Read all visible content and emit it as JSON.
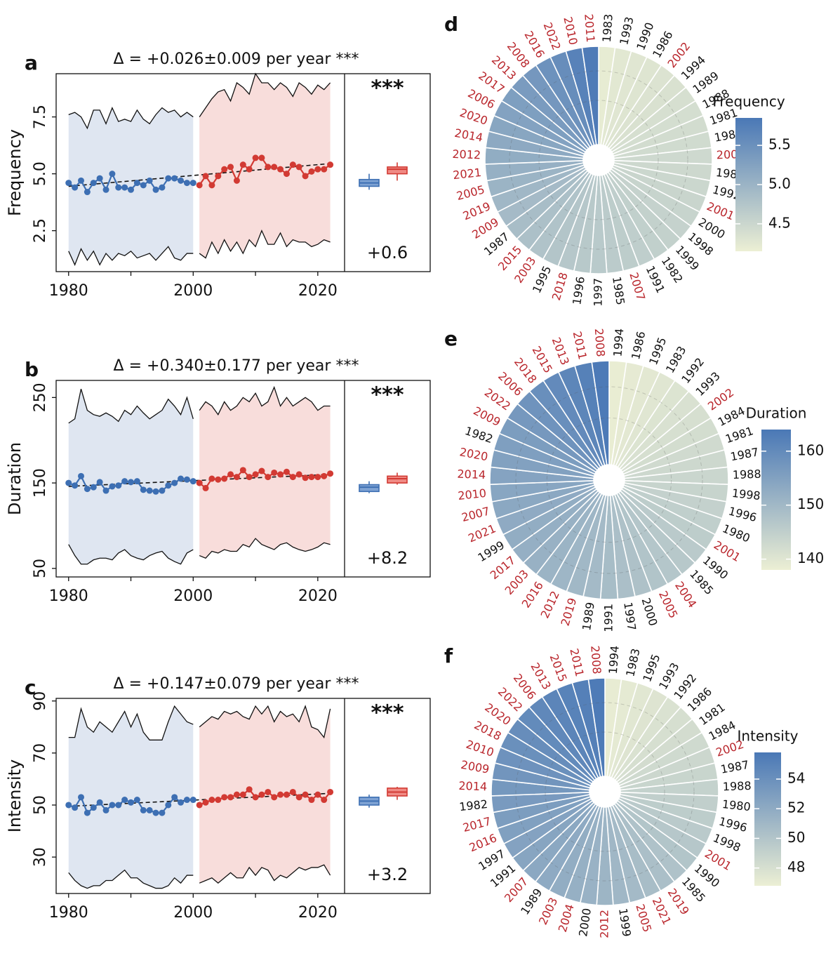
{
  "chart_data": [
    {
      "type": "line",
      "panel": "a",
      "title": "Δ = +0.026±0.009 per year ***",
      "ylabel": "Frequency",
      "xlim": [
        1978,
        2024.3
      ],
      "xticks": [
        1980,
        2000,
        2020
      ],
      "xminorticks": [
        1990,
        2010
      ],
      "ylim": [
        0.7,
        9.4
      ],
      "yticks": [
        2.5,
        {
          "value": 5,
          "label": "5.0"
        },
        7.5
      ],
      "series": [
        {
          "color": "#3d6fb3",
          "fill": "#dfe6f1",
          "x": [
            1980,
            1981,
            1982,
            1983,
            1984,
            1985,
            1986,
            1987,
            1988,
            1989,
            1990,
            1991,
            1992,
            1993,
            1994,
            1995,
            1996,
            1997,
            1998,
            1999,
            2000
          ],
          "values": [
            4.6,
            4.4,
            4.7,
            4.2,
            4.6,
            4.8,
            4.3,
            5.0,
            4.4,
            4.4,
            4.3,
            4.6,
            4.5,
            4.7,
            4.3,
            4.4,
            4.8,
            4.8,
            4.7,
            4.6,
            4.6
          ],
          "upper": [
            7.6,
            7.7,
            7.5,
            7.0,
            7.8,
            7.8,
            7.2,
            7.9,
            7.3,
            7.4,
            7.3,
            7.8,
            7.4,
            7.2,
            7.6,
            7.9,
            7.7,
            7.8,
            7.5,
            7.7,
            7.5
          ],
          "lower": [
            1.6,
            1.0,
            1.7,
            1.2,
            1.6,
            1.0,
            1.5,
            1.2,
            1.5,
            1.4,
            1.6,
            1.3,
            1.4,
            1.5,
            1.2,
            1.5,
            1.8,
            1.3,
            1.2,
            1.5,
            1.5
          ]
        },
        {
          "color": "#d23a33",
          "fill": "#f8dddb",
          "x": [
            2001,
            2002,
            2003,
            2004,
            2005,
            2006,
            2007,
            2008,
            2009,
            2010,
            2011,
            2012,
            2013,
            2014,
            2015,
            2016,
            2017,
            2018,
            2019,
            2020,
            2021,
            2022
          ],
          "values": [
            4.5,
            4.9,
            4.5,
            4.9,
            5.2,
            5.3,
            4.7,
            5.4,
            5.2,
            5.7,
            5.7,
            5.3,
            5.3,
            5.2,
            5.0,
            5.4,
            5.3,
            4.9,
            5.1,
            5.2,
            5.2,
            5.4
          ],
          "upper": [
            7.5,
            7.9,
            8.3,
            8.6,
            8.7,
            8.2,
            9.0,
            8.8,
            8.5,
            9.4,
            9.0,
            9.0,
            8.7,
            9.0,
            8.8,
            8.4,
            9.0,
            8.8,
            8.5,
            8.9,
            8.7,
            9.0
          ],
          "lower": [
            1.5,
            1.3,
            2.0,
            1.5,
            2.1,
            1.6,
            2.0,
            1.5,
            2.1,
            1.8,
            2.5,
            1.9,
            1.9,
            2.4,
            1.8,
            2.1,
            2.0,
            2.0,
            1.8,
            1.9,
            2.1,
            2.0
          ]
        }
      ],
      "trend": {
        "x": [
          1980,
          2022
        ],
        "values": [
          4.45,
          5.45
        ]
      },
      "boxes": [
        {
          "color": "#3d6fb3",
          "fill": "#7ea2d3",
          "low": 4.3,
          "q1": 4.45,
          "median": 4.6,
          "q3": 4.75,
          "high": 5.0
        },
        {
          "color": "#d23a33",
          "fill": "#f08a84",
          "low": 4.7,
          "q1": 5.0,
          "median": 5.2,
          "q3": 5.3,
          "high": 5.5
        }
      ],
      "significance": "***",
      "difference": "+0.6"
    },
    {
      "type": "line",
      "panel": "b",
      "title": "Δ = +0.340±0.177 per year ***",
      "ylabel": "Duration",
      "xlim": [
        1978,
        2024.3
      ],
      "xticks": [
        1980,
        2000,
        2020
      ],
      "xminorticks": [
        1990,
        2010
      ],
      "ylim": [
        40,
        270
      ],
      "yticks": [
        50,
        150,
        250
      ],
      "series": [
        {
          "color": "#3d6fb3",
          "fill": "#dfe6f1",
          "x": [
            1980,
            1981,
            1982,
            1983,
            1984,
            1985,
            1986,
            1987,
            1988,
            1989,
            1990,
            1991,
            1992,
            1993,
            1994,
            1995,
            1996,
            1997,
            1998,
            1999,
            2000
          ],
          "values": [
            150,
            147,
            158,
            143,
            145,
            151,
            141,
            146,
            147,
            152,
            151,
            152,
            142,
            141,
            140,
            141,
            147,
            150,
            155,
            154,
            152
          ],
          "upper": [
            220,
            225,
            260,
            235,
            230,
            228,
            232,
            228,
            222,
            235,
            230,
            240,
            232,
            225,
            230,
            235,
            248,
            240,
            230,
            250,
            225
          ],
          "lower": [
            78,
            65,
            55,
            55,
            60,
            62,
            62,
            60,
            68,
            72,
            65,
            62,
            60,
            65,
            68,
            70,
            62,
            58,
            55,
            68,
            72
          ]
        },
        {
          "color": "#d23a33",
          "fill": "#f8dddb",
          "x": [
            2001,
            2002,
            2003,
            2004,
            2005,
            2006,
            2007,
            2008,
            2009,
            2010,
            2011,
            2012,
            2013,
            2014,
            2015,
            2016,
            2017,
            2018,
            2019,
            2020,
            2021,
            2022
          ],
          "values": [
            150,
            144,
            155,
            154,
            155,
            160,
            157,
            165,
            157,
            160,
            164,
            157,
            162,
            160,
            163,
            157,
            160,
            156,
            157,
            157,
            158,
            161
          ],
          "upper": [
            235,
            245,
            240,
            230,
            245,
            235,
            240,
            250,
            245,
            255,
            240,
            245,
            262,
            240,
            250,
            240,
            245,
            250,
            245,
            235,
            240,
            240
          ],
          "lower": [
            65,
            62,
            70,
            68,
            72,
            70,
            70,
            78,
            75,
            85,
            78,
            75,
            72,
            78,
            80,
            75,
            72,
            70,
            72,
            75,
            80,
            78
          ]
        }
      ],
      "trend": {
        "x": [
          1980,
          2022
        ],
        "values": [
          146,
          160
        ]
      },
      "boxes": [
        {
          "color": "#3d6fb3",
          "fill": "#7ea2d3",
          "low": 138,
          "q1": 140,
          "median": 145,
          "q3": 148,
          "high": 152
        },
        {
          "color": "#d23a33",
          "fill": "#f08a84",
          "low": 148,
          "q1": 150,
          "median": 155,
          "q3": 158,
          "high": 162
        }
      ],
      "significance": "***",
      "difference": "+8.2"
    },
    {
      "type": "line",
      "panel": "c",
      "title": "Δ = +0.147±0.079 per year ***",
      "ylabel": "Intensity",
      "xlim": [
        1978,
        2024.3
      ],
      "xticks": [
        1980,
        2000,
        2020
      ],
      "xminorticks": [
        1990,
        2010
      ],
      "ylim": [
        16,
        91
      ],
      "yticks": [
        30,
        50,
        70,
        90
      ],
      "series": [
        {
          "color": "#3d6fb3",
          "fill": "#dfe6f1",
          "x": [
            1980,
            1981,
            1982,
            1983,
            1984,
            1985,
            1986,
            1987,
            1988,
            1989,
            1990,
            1991,
            1992,
            1993,
            1994,
            1995,
            1996,
            1997,
            1998,
            1999,
            2000
          ],
          "values": [
            50,
            49,
            53,
            47,
            49,
            51,
            48,
            50,
            50,
            52,
            51,
            52,
            48,
            48,
            47,
            47,
            50,
            53,
            51,
            52,
            52
          ],
          "upper": [
            76,
            76,
            87,
            80,
            78,
            82,
            80,
            78,
            82,
            86,
            80,
            85,
            78,
            75,
            75,
            75,
            82,
            88,
            85,
            82,
            81
          ],
          "lower": [
            24,
            21,
            19,
            18,
            19,
            19,
            21,
            21,
            23,
            25,
            22,
            22,
            20,
            19,
            18,
            18,
            19,
            22,
            20,
            23,
            23
          ]
        },
        {
          "color": "#d23a33",
          "fill": "#f8dddb",
          "x": [
            2001,
            2002,
            2003,
            2004,
            2005,
            2006,
            2007,
            2008,
            2009,
            2010,
            2011,
            2012,
            2013,
            2014,
            2015,
            2016,
            2017,
            2018,
            2019,
            2020,
            2021,
            2022
          ],
          "values": [
            50,
            51,
            52,
            52,
            53,
            53,
            54,
            54,
            56,
            53,
            54,
            55,
            53,
            54,
            54,
            55,
            53,
            54,
            52,
            54,
            52,
            55
          ],
          "upper": [
            80,
            82,
            84,
            83,
            86,
            85,
            86,
            84,
            83,
            88,
            85,
            88,
            82,
            86,
            84,
            85,
            82,
            88,
            80,
            79,
            76,
            87
          ],
          "lower": [
            20,
            21,
            22,
            20,
            22,
            24,
            22,
            22,
            26,
            23,
            26,
            25,
            21,
            23,
            22,
            24,
            26,
            25,
            26,
            26,
            27,
            23
          ]
        }
      ],
      "trend": {
        "x": [
          1980,
          2022
        ],
        "values": [
          49.5,
          54.5
        ]
      },
      "boxes": [
        {
          "color": "#3d6fb3",
          "fill": "#7ea2d3",
          "low": 49,
          "q1": 50,
          "median": 51.5,
          "q3": 53,
          "high": 54
        },
        {
          "color": "#d23a33",
          "fill": "#f08a84",
          "low": 52,
          "q1": 53.5,
          "median": 55,
          "q3": 56.5,
          "high": 57
        }
      ],
      "significance": "***",
      "difference": "+3.2"
    },
    {
      "type": "polar_bar",
      "panel": "d",
      "legend_title": "Frequency",
      "categories": [
        "1983",
        "1993",
        "1990",
        "1986",
        "2002",
        "1994",
        "1989",
        "1988",
        "1981",
        "1984",
        "2004",
        "1980",
        "1992",
        "2001",
        "2000",
        "1998",
        "1999",
        "1982",
        "1991",
        "2007",
        "1985",
        "1997",
        "1996",
        "2018",
        "1995",
        "2003",
        "2015",
        "1987",
        "2009",
        "2019",
        "2005",
        "2021",
        "2012",
        "2014",
        "2020",
        "2006",
        "2017",
        "2013",
        "2008",
        "2016",
        "2022",
        "2010",
        "2011"
      ],
      "values": [
        4.2,
        4.25,
        4.28,
        4.3,
        4.32,
        4.35,
        4.38,
        4.4,
        4.42,
        4.44,
        4.46,
        4.48,
        4.5,
        4.52,
        4.54,
        4.56,
        4.58,
        4.6,
        4.62,
        4.64,
        4.66,
        4.68,
        4.7,
        4.72,
        4.75,
        4.78,
        4.82,
        4.86,
        4.9,
        4.95,
        5.0,
        5.05,
        5.1,
        5.15,
        5.2,
        5.25,
        5.3,
        5.35,
        5.4,
        5.48,
        5.55,
        5.7,
        5.8
      ],
      "colors": [
        "#ecefd4",
        "#4a78b6"
      ],
      "clim": [
        4.15,
        5.85
      ],
      "cticks": [
        4.5,
        {
          "value": 5,
          "label": "5.0"
        },
        5.5
      ],
      "label_color": "#111111",
      "late_label_color": "#b9262c",
      "late_from": 2001
    },
    {
      "type": "polar_bar",
      "panel": "e",
      "legend_title": "Duration",
      "categories": [
        "1994",
        "1986",
        "1995",
        "1983",
        "1992",
        "1993",
        "2002",
        "1984",
        "1981",
        "1987",
        "1988",
        "1998",
        "1996",
        "1980",
        "2001",
        "1990",
        "1985",
        "2004",
        "2005",
        "2000",
        "1997",
        "1991",
        "1989",
        "2019",
        "2012",
        "2016",
        "2003",
        "2017",
        "1999",
        "2021",
        "2007",
        "2010",
        "2014",
        "2020",
        "1982",
        "2009",
        "2022",
        "2006",
        "2018",
        "2015",
        "2013",
        "2011",
        "2008"
      ],
      "values": [
        138.5,
        139,
        139.5,
        140,
        140.5,
        141,
        141.5,
        142,
        142.5,
        143,
        143.5,
        144,
        144.5,
        145,
        145.5,
        146,
        146.5,
        147,
        147.5,
        148,
        148.5,
        149,
        149.5,
        150,
        150.5,
        151,
        151.5,
        152,
        152.5,
        153,
        153.5,
        154,
        154.5,
        155,
        155.5,
        156,
        157,
        158,
        159,
        160,
        161,
        162,
        163.5
      ],
      "colors": [
        "#ecefd4",
        "#4a78b6"
      ],
      "clim": [
        138,
        164
      ],
      "cticks": [
        140,
        150,
        160
      ],
      "label_color": "#111111",
      "late_label_color": "#b9262c",
      "late_from": 2001
    },
    {
      "type": "polar_bar",
      "panel": "f",
      "legend_title": "Intensity",
      "categories": [
        "1994",
        "1983",
        "1995",
        "1993",
        "1992",
        "1986",
        "1981",
        "1984",
        "2002",
        "1987",
        "1988",
        "1980",
        "1996",
        "1998",
        "2001",
        "1990",
        "1985",
        "2019",
        "2021",
        "2005",
        "1999",
        "2012",
        "2000",
        "2004",
        "2003",
        "1989",
        "2007",
        "1991",
        "1997",
        "2016",
        "2017",
        "1982",
        "2014",
        "2009",
        "2010",
        "2018",
        "2020",
        "2022",
        "2006",
        "2013",
        "2015",
        "2011",
        "2008"
      ],
      "values": [
        47.0,
        47.2,
        47.4,
        47.6,
        47.8,
        48.0,
        48.2,
        48.4,
        48.6,
        48.8,
        49.0,
        49.2,
        49.4,
        49.6,
        49.8,
        50.0,
        50.2,
        50.4,
        50.6,
        50.8,
        51.0,
        51.2,
        51.4,
        51.6,
        51.8,
        52.0,
        52.2,
        52.4,
        52.6,
        52.8,
        53.0,
        53.2,
        53.4,
        53.6,
        53.8,
        54.0,
        54.2,
        54.4,
        54.6,
        54.8,
        55.0,
        55.2,
        55.6
      ],
      "colors": [
        "#ecefd4",
        "#4a78b6"
      ],
      "clim": [
        46.8,
        55.8
      ],
      "cticks": [
        48,
        50,
        52,
        54
      ],
      "label_color": "#111111",
      "late_label_color": "#b9262c",
      "late_from": 2001
    }
  ]
}
